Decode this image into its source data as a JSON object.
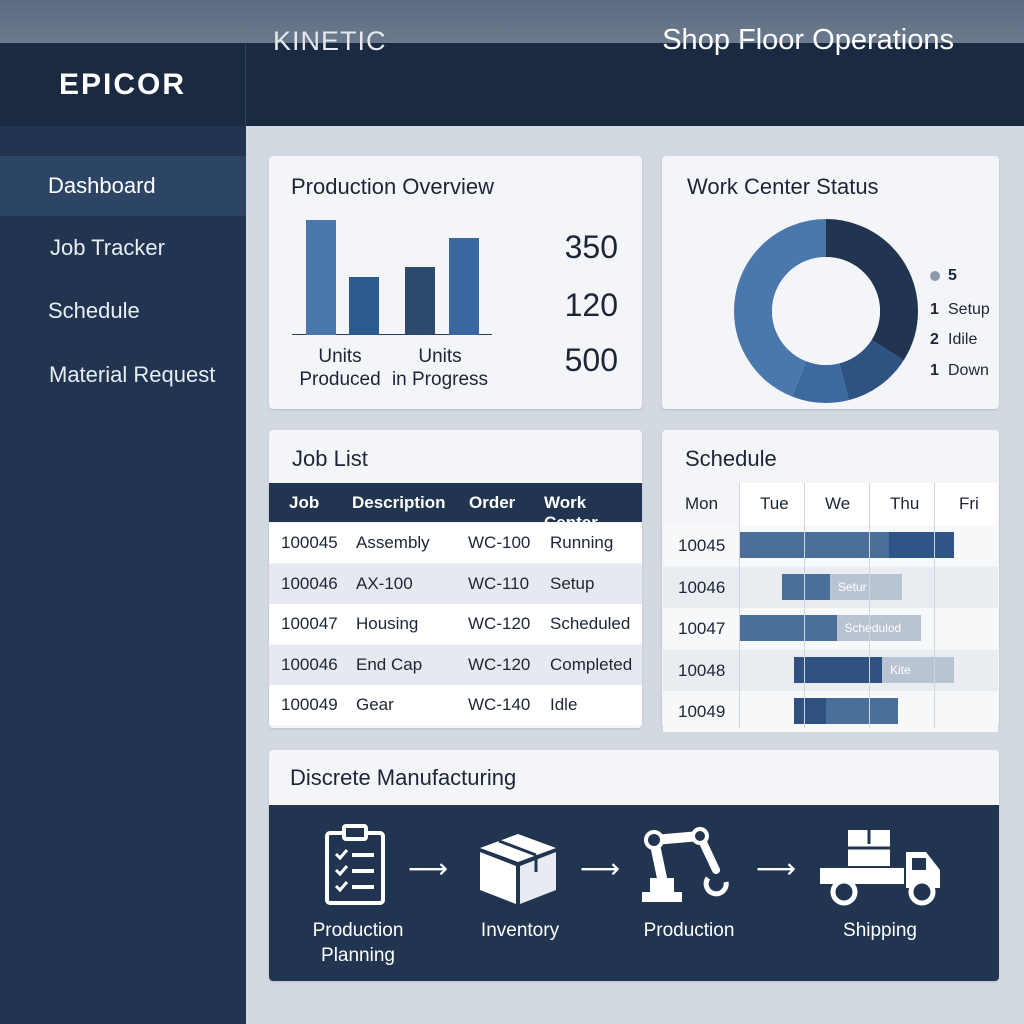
{
  "header": {
    "brand": "EPICOR",
    "product": "KINETIC",
    "page_title": "Shop Floor Operations"
  },
  "sidebar": {
    "items": [
      {
        "label": "Dashboard",
        "active": true
      },
      {
        "label": "Job Tracker",
        "active": false
      },
      {
        "label": "Schedule",
        "active": false
      },
      {
        "label": "Material Request",
        "active": false
      }
    ]
  },
  "production_overview": {
    "title": "Production Overview",
    "label_1_line1": "Units",
    "label_1_line2": "Produced",
    "label_2_line1": "Units",
    "label_2_line2": "in Progress",
    "stats": [
      "350",
      "120",
      "500"
    ]
  },
  "chart_data": {
    "type": "bar",
    "categories": [
      "Units Produced",
      "Units in Progress"
    ],
    "series": [
      {
        "values": [
          115,
          58
        ]
      },
      {
        "values": [
          68,
          97
        ]
      }
    ],
    "ylim": [
      0,
      125
    ],
    "colors": [
      "#4a77ab",
      "#2c5b8f",
      "#2d4a6d",
      "#3a67a0"
    ]
  },
  "work_center_status": {
    "title": "Work Center Status",
    "legend": [
      {
        "count": "",
        "label": "5"
      },
      {
        "count": "1",
        "label": "Setup"
      },
      {
        "count": "2",
        "label": "Idile"
      },
      {
        "count": "1",
        "label": "Down"
      }
    ],
    "donut": [
      {
        "value": 0.34,
        "color": "#213450"
      },
      {
        "value": 0.12,
        "color": "#2e5282"
      },
      {
        "value": 0.1,
        "color": "#3d6a9e"
      },
      {
        "value": 0.44,
        "color": "#4b78ac"
      }
    ]
  },
  "job_list": {
    "title": "Job List",
    "columns": [
      "Job",
      "Description",
      "Order",
      "Work Center"
    ],
    "rows": [
      [
        "100045",
        "Assembly",
        "WC-100",
        "Running"
      ],
      [
        "100046",
        "AX-100",
        "WC-110",
        "Setup"
      ],
      [
        "100047",
        "Housing",
        "WC-120",
        "Scheduled"
      ],
      [
        "100046",
        "End Cap",
        "WC-120",
        "Completed"
      ],
      [
        "100049",
        "Gear",
        "WC-140",
        "Idle"
      ]
    ]
  },
  "schedule": {
    "title": "Schedule",
    "days": [
      "Mon",
      "Tue",
      "We",
      "Thu",
      "Fri"
    ],
    "rows": [
      {
        "job": "10045",
        "bars": [
          {
            "start": 0.0,
            "end": 1.15,
            "color": "#4a6f9a",
            "text": ""
          },
          {
            "start": 1.15,
            "end": 1.65,
            "color": "#2f5587",
            "text": ""
          }
        ]
      },
      {
        "job": "10046",
        "bars": [
          {
            "start": 0.33,
            "end": 0.7,
            "color": "#4a6f9a",
            "text": ""
          },
          {
            "start": 0.7,
            "end": 1.25,
            "color": "#b8c4d2",
            "text": "Setur"
          }
        ]
      },
      {
        "job": "10047",
        "bars": [
          {
            "start": 0.0,
            "end": 0.75,
            "color": "#4a6f9a",
            "text": ""
          },
          {
            "start": 0.75,
            "end": 1.4,
            "color": "#b8c4d2",
            "text": "Schedulod"
          }
        ]
      },
      {
        "job": "10048",
        "bars": [
          {
            "start": 0.42,
            "end": 1.1,
            "color": "#2f5080",
            "text": ""
          },
          {
            "start": 1.1,
            "end": 1.65,
            "color": "#b8c4d2",
            "text": "Kite"
          }
        ]
      },
      {
        "job": "10049",
        "bars": [
          {
            "start": 0.42,
            "end": 0.67,
            "color": "#2f5080",
            "text": ""
          },
          {
            "start": 0.67,
            "end": 1.22,
            "color": "#4a6f9a",
            "text": ""
          }
        ]
      }
    ]
  },
  "discrete_manufacturing": {
    "title": "Discrete Manufacturing",
    "steps": [
      {
        "line1": "Production",
        "line2": "Planning",
        "icon": "clipboard-checklist-icon"
      },
      {
        "line1": "Inventory",
        "line2": "",
        "icon": "box-icon"
      },
      {
        "line1": "Production",
        "line2": "",
        "icon": "robot-arm-icon"
      },
      {
        "line1": "Shipping",
        "line2": "",
        "icon": "delivery-truck-icon"
      }
    ]
  }
}
